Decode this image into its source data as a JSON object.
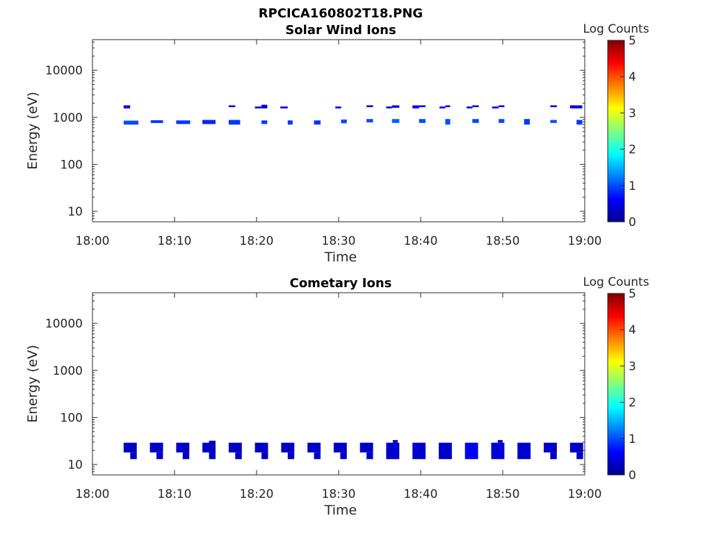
{
  "figure": {
    "filename_title": "RPCICA160802T18.PNG"
  },
  "colorbar": {
    "label": "Log Counts",
    "min": 0,
    "max": 5,
    "ticks": [
      "0",
      "1",
      "2",
      "3",
      "4",
      "5"
    ],
    "colormap": "jet"
  },
  "chart_data": [
    {
      "type": "heatmap",
      "title": "Solar Wind Ions",
      "xlabel": "Time",
      "ylabel": "Energy (eV)",
      "x_ticks": [
        "18:00",
        "18:10",
        "18:20",
        "18:30",
        "18:40",
        "18:50",
        "19:00"
      ],
      "x_range_minutes": [
        0,
        60
      ],
      "y_scale": "log",
      "y_range": [
        6,
        45000
      ],
      "y_ticks": [
        {
          "v": 10,
          "t": "10"
        },
        {
          "v": 100,
          "t": "100"
        },
        {
          "v": 1000,
          "t": "1000"
        },
        {
          "v": 10000,
          "t": "10000"
        }
      ],
      "grid": false,
      "cells": [
        {
          "t0": 3.8,
          "t1": 4.6,
          "e0": 1550,
          "e1": 1800,
          "v": 0.6
        },
        {
          "t0": 3.8,
          "t1": 5.6,
          "e0": 700,
          "e1": 850,
          "v": 1.0
        },
        {
          "t0": 7.1,
          "t1": 8.6,
          "e0": 760,
          "e1": 870,
          "v": 0.9
        },
        {
          "t0": 10.2,
          "t1": 11.9,
          "e0": 720,
          "e1": 860,
          "v": 0.9
        },
        {
          "t0": 13.4,
          "t1": 15.0,
          "e0": 720,
          "e1": 880,
          "v": 0.8
        },
        {
          "t0": 16.6,
          "t1": 18.0,
          "e0": 700,
          "e1": 880,
          "v": 0.9
        },
        {
          "t0": 16.6,
          "t1": 17.4,
          "e0": 1650,
          "e1": 1800,
          "v": 0.5
        },
        {
          "t0": 19.8,
          "t1": 20.6,
          "e0": 1550,
          "e1": 1700,
          "v": 0.5
        },
        {
          "t0": 20.6,
          "t1": 21.3,
          "e0": 1550,
          "e1": 1850,
          "v": 0.5
        },
        {
          "t0": 20.6,
          "t1": 21.3,
          "e0": 720,
          "e1": 860,
          "v": 0.9
        },
        {
          "t0": 22.9,
          "t1": 23.8,
          "e0": 1550,
          "e1": 1700,
          "v": 0.5
        },
        {
          "t0": 23.8,
          "t1": 24.4,
          "e0": 700,
          "e1": 860,
          "v": 0.9
        },
        {
          "t0": 27.0,
          "t1": 27.8,
          "e0": 700,
          "e1": 860,
          "v": 0.9
        },
        {
          "t0": 29.6,
          "t1": 30.3,
          "e0": 1550,
          "e1": 1700,
          "v": 0.5
        },
        {
          "t0": 30.3,
          "t1": 31.0,
          "e0": 750,
          "e1": 900,
          "v": 1.0
        },
        {
          "t0": 33.4,
          "t1": 34.2,
          "e0": 780,
          "e1": 920,
          "v": 1.0
        },
        {
          "t0": 33.4,
          "t1": 34.2,
          "e0": 1650,
          "e1": 1800,
          "v": 0.5
        },
        {
          "t0": 35.8,
          "t1": 36.5,
          "e0": 1550,
          "e1": 1700,
          "v": 0.5
        },
        {
          "t0": 36.5,
          "t1": 37.4,
          "e0": 1600,
          "e1": 1800,
          "v": 0.5
        },
        {
          "t0": 36.5,
          "t1": 37.4,
          "e0": 760,
          "e1": 920,
          "v": 1.1
        },
        {
          "t0": 39.0,
          "t1": 39.8,
          "e0": 1550,
          "e1": 1800,
          "v": 0.6
        },
        {
          "t0": 39.8,
          "t1": 40.6,
          "e0": 1650,
          "e1": 1800,
          "v": 0.5
        },
        {
          "t0": 39.8,
          "t1": 40.6,
          "e0": 760,
          "e1": 920,
          "v": 1.0
        },
        {
          "t0": 42.3,
          "t1": 43.0,
          "e0": 1550,
          "e1": 1700,
          "v": 0.5
        },
        {
          "t0": 43.0,
          "t1": 43.6,
          "e0": 700,
          "e1": 920,
          "v": 1.0
        },
        {
          "t0": 43.0,
          "t1": 43.6,
          "e0": 1650,
          "e1": 1800,
          "v": 0.5
        },
        {
          "t0": 45.6,
          "t1": 46.3,
          "e0": 1550,
          "e1": 1700,
          "v": 0.5
        },
        {
          "t0": 46.3,
          "t1": 47.1,
          "e0": 760,
          "e1": 920,
          "v": 1.0
        },
        {
          "t0": 46.3,
          "t1": 47.1,
          "e0": 1650,
          "e1": 1800,
          "v": 0.5
        },
        {
          "t0": 48.7,
          "t1": 49.5,
          "e0": 1550,
          "e1": 1700,
          "v": 0.5
        },
        {
          "t0": 49.5,
          "t1": 50.2,
          "e0": 760,
          "e1": 920,
          "v": 1.0
        },
        {
          "t0": 49.5,
          "t1": 50.2,
          "e0": 1650,
          "e1": 1800,
          "v": 0.5
        },
        {
          "t0": 52.6,
          "t1": 53.3,
          "e0": 700,
          "e1": 920,
          "v": 0.9
        },
        {
          "t0": 55.8,
          "t1": 56.6,
          "e0": 760,
          "e1": 880,
          "v": 1.0
        },
        {
          "t0": 55.8,
          "t1": 56.6,
          "e0": 1650,
          "e1": 1800,
          "v": 0.5
        },
        {
          "t0": 58.2,
          "t1": 59.7,
          "e0": 1550,
          "e1": 1800,
          "v": 0.6
        },
        {
          "t0": 59.0,
          "t1": 59.7,
          "e0": 700,
          "e1": 880,
          "v": 0.9
        }
      ]
    },
    {
      "type": "heatmap",
      "title": "Cometary Ions",
      "xlabel": "Time",
      "ylabel": "Energy (eV)",
      "x_ticks": [
        "18:00",
        "18:10",
        "18:20",
        "18:30",
        "18:40",
        "18:50",
        "19:00"
      ],
      "x_range_minutes": [
        0,
        60
      ],
      "y_scale": "log",
      "y_range": [
        6,
        45000
      ],
      "y_ticks": [
        {
          "v": 10,
          "t": "10"
        },
        {
          "v": 100,
          "t": "100"
        },
        {
          "v": 1000,
          "t": "1000"
        },
        {
          "v": 10000,
          "t": "10000"
        }
      ],
      "grid": false,
      "cells": [
        {
          "t0": 3.8,
          "t1": 5.4,
          "e0": 18,
          "e1": 29,
          "v": 0.3
        },
        {
          "t0": 4.6,
          "t1": 5.4,
          "e0": 13,
          "e1": 18,
          "v": 0.3
        },
        {
          "t0": 7.0,
          "t1": 8.6,
          "e0": 18,
          "e1": 29,
          "v": 0.3
        },
        {
          "t0": 7.8,
          "t1": 8.6,
          "e0": 13,
          "e1": 18,
          "v": 0.3
        },
        {
          "t0": 10.2,
          "t1": 11.8,
          "e0": 18,
          "e1": 29,
          "v": 0.3
        },
        {
          "t0": 11.0,
          "t1": 11.8,
          "e0": 13,
          "e1": 18,
          "v": 0.3
        },
        {
          "t0": 13.4,
          "t1": 15.0,
          "e0": 18,
          "e1": 29,
          "v": 0.3
        },
        {
          "t0": 14.2,
          "t1": 15.0,
          "e0": 13,
          "e1": 32,
          "v": 0.3
        },
        {
          "t0": 16.6,
          "t1": 18.2,
          "e0": 18,
          "e1": 29,
          "v": 0.3
        },
        {
          "t0": 17.4,
          "t1": 18.2,
          "e0": 13,
          "e1": 18,
          "v": 0.3
        },
        {
          "t0": 19.8,
          "t1": 21.4,
          "e0": 18,
          "e1": 29,
          "v": 0.3
        },
        {
          "t0": 20.6,
          "t1": 21.4,
          "e0": 13,
          "e1": 18,
          "v": 0.3
        },
        {
          "t0": 23.0,
          "t1": 24.6,
          "e0": 18,
          "e1": 29,
          "v": 0.3
        },
        {
          "t0": 23.8,
          "t1": 24.6,
          "e0": 13,
          "e1": 18,
          "v": 0.3
        },
        {
          "t0": 26.2,
          "t1": 27.8,
          "e0": 18,
          "e1": 29,
          "v": 0.3
        },
        {
          "t0": 27.0,
          "t1": 27.8,
          "e0": 13,
          "e1": 18,
          "v": 0.3
        },
        {
          "t0": 29.4,
          "t1": 31.0,
          "e0": 18,
          "e1": 29,
          "v": 0.3
        },
        {
          "t0": 30.2,
          "t1": 31.0,
          "e0": 13,
          "e1": 18,
          "v": 0.3
        },
        {
          "t0": 32.6,
          "t1": 34.2,
          "e0": 18,
          "e1": 29,
          "v": 0.3
        },
        {
          "t0": 33.4,
          "t1": 34.2,
          "e0": 13,
          "e1": 18,
          "v": 0.3
        },
        {
          "t0": 35.8,
          "t1": 37.4,
          "e0": 13,
          "e1": 29,
          "v": 0.35
        },
        {
          "t0": 36.6,
          "t1": 37.2,
          "e0": 29,
          "e1": 33,
          "v": 0.3
        },
        {
          "t0": 39.0,
          "t1": 40.6,
          "e0": 13,
          "e1": 29,
          "v": 0.35
        },
        {
          "t0": 42.2,
          "t1": 43.8,
          "e0": 13,
          "e1": 29,
          "v": 0.35
        },
        {
          "t0": 45.4,
          "t1": 47.0,
          "e0": 13,
          "e1": 29,
          "v": 0.55
        },
        {
          "t0": 48.6,
          "t1": 50.2,
          "e0": 13,
          "e1": 29,
          "v": 0.4
        },
        {
          "t0": 49.4,
          "t1": 50.0,
          "e0": 29,
          "e1": 33,
          "v": 0.3
        },
        {
          "t0": 51.8,
          "t1": 53.4,
          "e0": 13,
          "e1": 29,
          "v": 0.35
        },
        {
          "t0": 55.0,
          "t1": 56.6,
          "e0": 18,
          "e1": 29,
          "v": 0.3
        },
        {
          "t0": 55.8,
          "t1": 56.6,
          "e0": 13,
          "e1": 18,
          "v": 0.3
        },
        {
          "t0": 58.2,
          "t1": 59.8,
          "e0": 18,
          "e1": 29,
          "v": 0.3
        },
        {
          "t0": 59.0,
          "t1": 59.8,
          "e0": 13,
          "e1": 18,
          "v": 0.3
        }
      ]
    }
  ]
}
